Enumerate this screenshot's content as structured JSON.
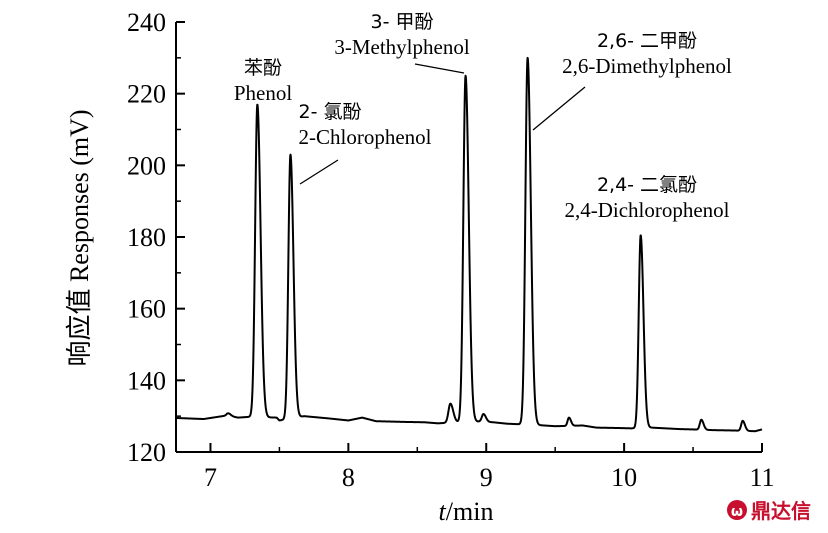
{
  "chart_data": {
    "type": "line",
    "xlabel_var": "t",
    "xlabel_unit": "/min",
    "ylabel": "响应值 Responses (mV)",
    "xlim": [
      6.75,
      11
    ],
    "ylim": [
      120,
      240
    ],
    "xticks": [
      7,
      8,
      9,
      10,
      11
    ],
    "yticks": [
      120,
      140,
      160,
      180,
      200,
      220,
      240
    ],
    "grid": false,
    "line_color": "#000000",
    "baseline": [
      [
        6.75,
        129.5
      ],
      [
        6.95,
        129.2
      ],
      [
        7.12,
        130.2
      ],
      [
        7.2,
        129.6
      ],
      [
        7.28,
        129.8
      ],
      [
        7.48,
        129.6
      ],
      [
        7.5,
        128.8
      ],
      [
        7.68,
        130.0
      ],
      [
        7.85,
        129.4
      ],
      [
        8.0,
        128.8
      ],
      [
        8.1,
        129.6
      ],
      [
        8.2,
        128.6
      ],
      [
        8.4,
        128.4
      ],
      [
        8.55,
        128.3
      ],
      [
        8.65,
        128.0
      ],
      [
        8.78,
        128.3
      ],
      [
        8.95,
        128.5
      ],
      [
        9.05,
        128.3
      ],
      [
        9.15,
        127.9
      ],
      [
        9.38,
        127.5
      ],
      [
        9.5,
        127.2
      ],
      [
        9.7,
        127.4
      ],
      [
        9.8,
        126.8
      ],
      [
        9.95,
        126.7
      ],
      [
        10.05,
        126.6
      ],
      [
        10.2,
        126.8
      ],
      [
        10.4,
        126.4
      ],
      [
        10.5,
        126.3
      ],
      [
        10.65,
        126.1
      ],
      [
        10.8,
        126.0
      ],
      [
        10.95,
        125.8
      ],
      [
        11.0,
        126.3
      ]
    ],
    "minor_peaks": [
      {
        "x": 7.13,
        "h": 130.8,
        "w": 0.012
      },
      {
        "x": 8.74,
        "h": 133.5,
        "w": 0.014
      },
      {
        "x": 8.98,
        "h": 130.6,
        "w": 0.012
      },
      {
        "x": 9.6,
        "h": 129.6,
        "w": 0.01
      },
      {
        "x": 10.56,
        "h": 129.0,
        "w": 0.011
      },
      {
        "x": 10.86,
        "h": 128.7,
        "w": 0.011
      }
    ],
    "peaks": [
      {
        "cn": "苯酚",
        "en": "Phenol",
        "x": 7.34,
        "y": 217,
        "w": 0.016
      },
      {
        "cn": "2- 氯酚",
        "en": "2-Chlorophenol",
        "x": 7.58,
        "y": 203,
        "w": 0.015
      },
      {
        "cn": "3- 甲酚",
        "en": "3-Methylphenol",
        "x": 8.85,
        "y": 225,
        "w": 0.016
      },
      {
        "cn": "2,6- 二甲酚",
        "en": "2,6-Dimethylphenol",
        "x": 9.3,
        "y": 230,
        "w": 0.016
      },
      {
        "cn": "2,4- 二氯酚",
        "en": "2,4-Dichlorophenol",
        "x": 10.12,
        "y": 180.5,
        "w": 0.014
      }
    ]
  },
  "watermark": {
    "text": "鼎达信",
    "color": "#c8102e"
  }
}
